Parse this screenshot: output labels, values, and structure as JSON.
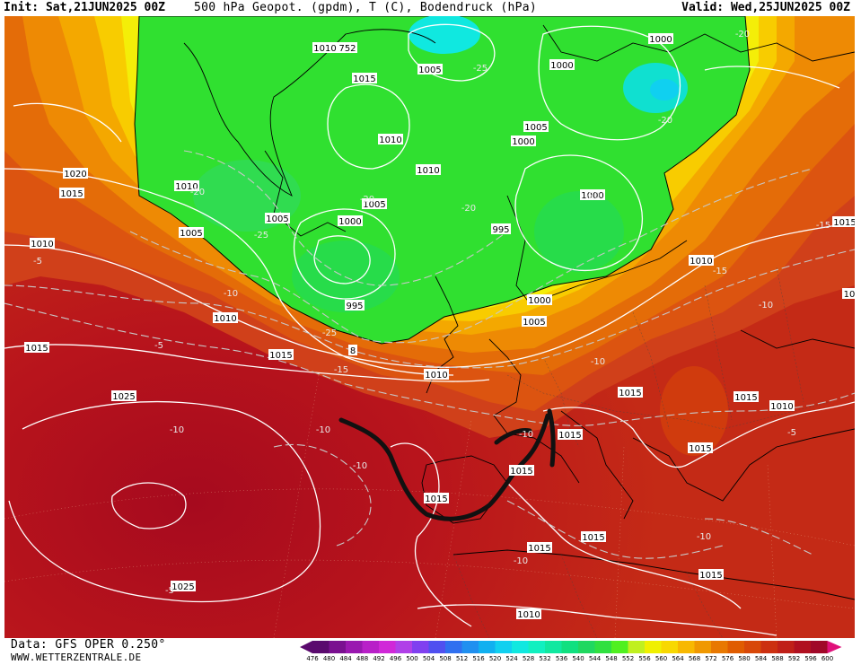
{
  "header": {
    "init": "Init: Sat,21JUN2025 00Z",
    "title": "500 hPa Geopot. (gpdm), T (C), Bodendruck (hPa)",
    "valid": "Valid: Wed,25JUN2025 00Z"
  },
  "footer": {
    "data_source": "Data: GFS OPER 0.250°",
    "website": "WWW.WETTERZENTRALE.DE"
  },
  "colorscale": {
    "labels": [
      "476",
      "480",
      "484",
      "488",
      "492",
      "496",
      "500",
      "504",
      "508",
      "512",
      "516",
      "520",
      "524",
      "528",
      "532",
      "536",
      "540",
      "544",
      "548",
      "552",
      "556",
      "560",
      "564",
      "568",
      "572",
      "576",
      "580",
      "584",
      "588",
      "592",
      "596",
      "600"
    ],
    "colors": [
      "#5a0a6e",
      "#7a1090",
      "#9a18b0",
      "#b820c8",
      "#d028d8",
      "#b040e8",
      "#8040f0",
      "#5050f0",
      "#3070f0",
      "#2090f0",
      "#10b0f0",
      "#10d0f0",
      "#10e8e0",
      "#10f0c0",
      "#10e8a0",
      "#10e080",
      "#20d860",
      "#30e040",
      "#50f020",
      "#c0f020",
      "#f0f000",
      "#f8d800",
      "#f8b800",
      "#f09800",
      "#e87800",
      "#e05c00",
      "#d84808",
      "#cc3010",
      "#c02018",
      "#b01020",
      "#a00828",
      "#e0107a"
    ]
  },
  "pressure_labels": [
    "1000",
    "1005",
    "1010",
    "1015",
    "1020",
    "1025",
    "995",
    "752"
  ],
  "map_labels": [
    {
      "t": "1010",
      "a": "1010-a"
    },
    {
      "t": "752",
      "a": "752"
    },
    {
      "t": "1005",
      "a": "1005-a"
    },
    {
      "t": "-25",
      "a": "m25-a"
    },
    {
      "t": "1000",
      "a": "1000-a"
    },
    {
      "t": "-20",
      "a": "m20-a"
    },
    {
      "t": "1000",
      "a": "1000-b"
    },
    {
      "t": "1015",
      "a": "1015-a"
    },
    {
      "t": "-20",
      "a": "m20-b"
    },
    {
      "t": "1005",
      "a": "1005-b"
    },
    {
      "t": "1000",
      "a": "1000-c"
    },
    {
      "t": "1010",
      "a": "1010-b"
    },
    {
      "t": "1010",
      "a": "1010-c"
    },
    {
      "t": "1020",
      "a": "1020"
    },
    {
      "t": "1015",
      "a": "1015-b"
    },
    {
      "t": "1010",
      "a": "1010-d"
    },
    {
      "t": "-20",
      "a": "m20-c"
    },
    {
      "t": "1005",
      "a": "1005-c"
    },
    {
      "t": "-20",
      "a": "m20-d"
    },
    {
      "t": "-20",
      "a": "m20-e"
    },
    {
      "t": "1005",
      "a": "1005-d"
    },
    {
      "t": "1000",
      "a": "1000-d"
    },
    {
      "t": "995",
      "a": "995-a"
    },
    {
      "t": "1005",
      "a": "1005-e"
    },
    {
      "t": "-25",
      "a": "m25-b"
    },
    {
      "t": "-15",
      "a": "m15-a"
    },
    {
      "t": "1015",
      "a": "1015-c"
    },
    {
      "t": "1010",
      "a": "1010-e"
    },
    {
      "t": "-5",
      "a": "m5-a"
    },
    {
      "t": "1010",
      "a": "1010-f"
    },
    {
      "t": "-15",
      "a": "m15-b"
    },
    {
      "t": "-10",
      "a": "m10-a"
    },
    {
      "t": "1000",
      "a": "1000-e"
    },
    {
      "t": "-10",
      "a": "m10-b"
    },
    {
      "t": "10",
      "a": "10-a"
    },
    {
      "t": "995",
      "a": "995-b"
    },
    {
      "t": "1010",
      "a": "1010-g"
    },
    {
      "t": "1000",
      "a": "1000-f"
    },
    {
      "t": "1005",
      "a": "1005-f"
    },
    {
      "t": "-25",
      "a": "m25-c"
    },
    {
      "t": "1015",
      "a": "1015-d"
    },
    {
      "t": "-5",
      "a": "m5-b"
    },
    {
      "t": "-20",
      "a": "m20-f"
    },
    {
      "t": "8",
      "a": "8"
    },
    {
      "t": "1015",
      "a": "1015-e"
    },
    {
      "t": "-15",
      "a": "m15-c"
    },
    {
      "t": "1010",
      "a": "1010-h"
    },
    {
      "t": "-10",
      "a": "m10-c"
    },
    {
      "t": "1025",
      "a": "1025-a"
    },
    {
      "t": "1015",
      "a": "1015-f"
    },
    {
      "t": "1015",
      "a": "1015-g"
    },
    {
      "t": "1010",
      "a": "1010-i"
    },
    {
      "t": "-10",
      "a": "m10-d"
    },
    {
      "t": "-10",
      "a": "m10-e"
    },
    {
      "t": "-10",
      "a": "m10-f"
    },
    {
      "t": "1015",
      "a": "1015-h"
    },
    {
      "t": "-5",
      "a": "m5-c"
    },
    {
      "t": "1015",
      "a": "1015-i"
    },
    {
      "t": "1015",
      "a": "1015-j"
    },
    {
      "t": "1015",
      "a": "1015-k"
    },
    {
      "t": "1015",
      "a": "1015-l"
    },
    {
      "t": "-10",
      "a": "m10-g"
    },
    {
      "t": "-10",
      "a": "m10-h"
    },
    {
      "t": "1015",
      "a": "1015-m"
    },
    {
      "t": "1025",
      "a": "1025-b"
    },
    {
      "t": "1010",
      "a": "1010-j"
    },
    {
      "t": "1015",
      "a": "1015-n"
    },
    {
      "t": "-10",
      "a": "m10-i"
    },
    {
      "t": "1015",
      "a": "1015-o"
    },
    {
      "t": "-5",
      "a": "m5-d"
    }
  ]
}
